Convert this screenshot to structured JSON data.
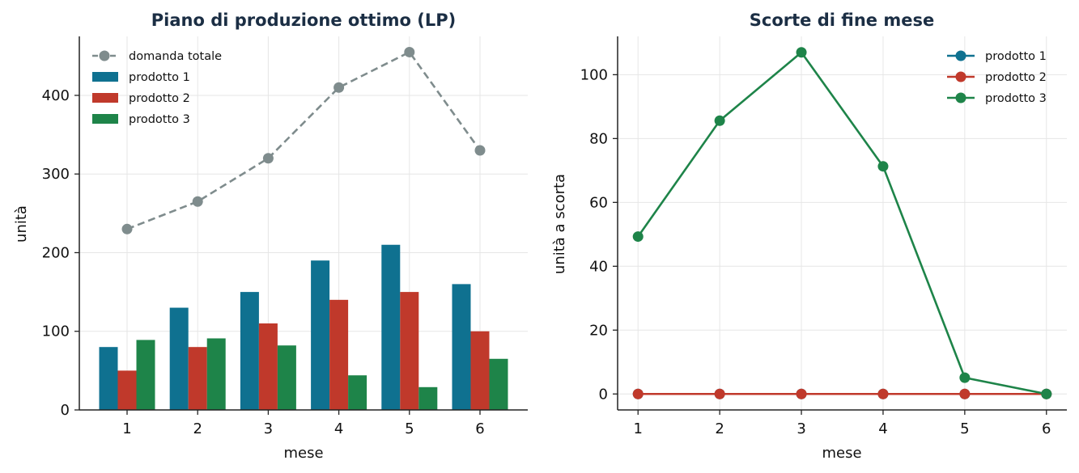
{
  "chart_data": [
    {
      "type": "bar",
      "title": "Piano di produzione ottimo (LP)",
      "xlabel": "mese",
      "ylabel": "unità",
      "categories": [
        "1",
        "2",
        "3",
        "4",
        "5",
        "6"
      ],
      "ylim": [
        0,
        475
      ],
      "yticks": [
        0,
        100,
        200,
        300,
        400
      ],
      "grid": true,
      "legend_position": "top-left",
      "series": [
        {
          "name": "prodotto 1",
          "type": "bar",
          "color": "#0f7190",
          "values": [
            80,
            130,
            150,
            190,
            210,
            160
          ]
        },
        {
          "name": "prodotto 2",
          "type": "bar",
          "color": "#c0392b",
          "values": [
            50,
            80,
            110,
            140,
            150,
            100
          ]
        },
        {
          "name": "prodotto 3",
          "type": "bar",
          "color": "#1e8449",
          "values": [
            89,
            91,
            82,
            44,
            29,
            65
          ]
        },
        {
          "name": "domanda totale",
          "type": "line",
          "style": "dashed",
          "color": "#7f8c8d",
          "values": [
            230,
            265,
            320,
            410,
            455,
            330
          ]
        }
      ]
    },
    {
      "type": "line",
      "title": "Scorte di fine mese",
      "xlabel": "mese",
      "ylabel": "unità a scorta",
      "x": [
        1,
        2,
        3,
        4,
        5,
        6
      ],
      "xlim": [
        0.75,
        6.25
      ],
      "ylim": [
        -5,
        112
      ],
      "yticks": [
        0,
        20,
        40,
        60,
        80,
        100
      ],
      "grid": true,
      "legend_position": "top-right",
      "series": [
        {
          "name": "prodotto 1",
          "color": "#0f7190",
          "values": [
            0,
            0,
            0,
            0,
            0,
            0
          ]
        },
        {
          "name": "prodotto 2",
          "color": "#c0392b",
          "values": [
            0,
            0,
            0,
            0,
            0,
            0
          ]
        },
        {
          "name": "prodotto 3",
          "color": "#1e8449",
          "values": [
            49.3,
            85.6,
            107,
            71.3,
            5.1,
            0
          ]
        }
      ]
    }
  ]
}
